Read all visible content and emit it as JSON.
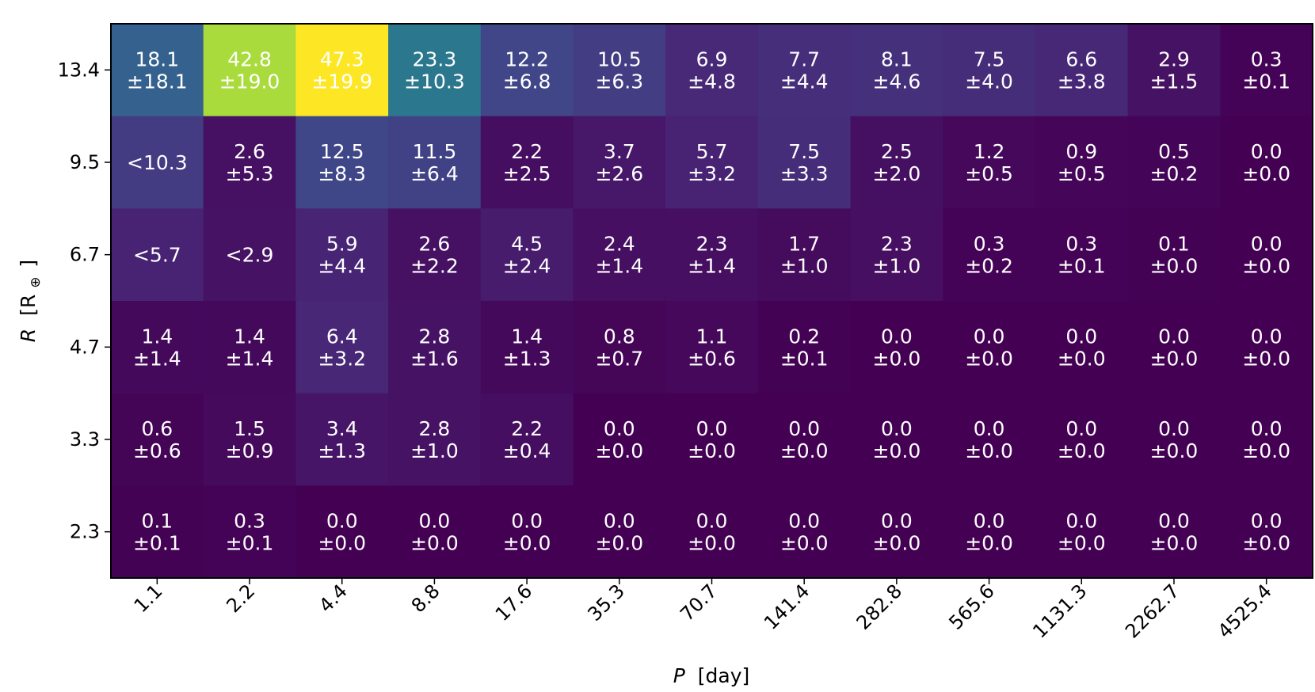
{
  "chart_data": {
    "type": "heatmap",
    "title": "",
    "xlabel_var": "P",
    "xlabel_unit": "[day]",
    "ylabel_var": "R",
    "ylabel_unit": "[R",
    "ylabel_sub": "⊕",
    "ylabel_close": "]",
    "colormap": "viridis",
    "vmin": 0,
    "vmax": 47.3,
    "x_categories": [
      "1.1",
      "2.2",
      "4.4",
      "8.8",
      "17.6",
      "35.3",
      "70.7",
      "141.4",
      "282.8",
      "565.6",
      "1131.3",
      "2262.7",
      "4525.4"
    ],
    "y_categories": [
      "13.4",
      "9.5",
      "6.7",
      "4.7",
      "3.3",
      "2.3"
    ],
    "rows": [
      [
        {
          "value": 18.1,
          "label": "18.1",
          "err": "±18.1"
        },
        {
          "value": 42.8,
          "label": "42.8",
          "err": "±19.0"
        },
        {
          "value": 47.3,
          "label": "47.3",
          "err": "±19.9"
        },
        {
          "value": 23.3,
          "label": "23.3",
          "err": "±10.3"
        },
        {
          "value": 12.2,
          "label": "12.2",
          "err": "±6.8"
        },
        {
          "value": 10.5,
          "label": "10.5",
          "err": "±6.3"
        },
        {
          "value": 6.9,
          "label": "6.9",
          "err": "±4.8"
        },
        {
          "value": 7.7,
          "label": "7.7",
          "err": "±4.4"
        },
        {
          "value": 8.1,
          "label": "8.1",
          "err": "±4.6"
        },
        {
          "value": 7.5,
          "label": "7.5",
          "err": "±4.0"
        },
        {
          "value": 6.6,
          "label": "6.6",
          "err": "±3.8"
        },
        {
          "value": 2.9,
          "label": "2.9",
          "err": "±1.5"
        },
        {
          "value": 0.3,
          "label": "0.3",
          "err": "±0.1"
        }
      ],
      [
        {
          "value": 10.3,
          "label": "<10.3",
          "err": ""
        },
        {
          "value": 2.6,
          "label": "2.6",
          "err": "±5.3"
        },
        {
          "value": 12.5,
          "label": "12.5",
          "err": "±8.3"
        },
        {
          "value": 11.5,
          "label": "11.5",
          "err": "±6.4"
        },
        {
          "value": 2.2,
          "label": "2.2",
          "err": "±2.5"
        },
        {
          "value": 3.7,
          "label": "3.7",
          "err": "±2.6"
        },
        {
          "value": 5.7,
          "label": "5.7",
          "err": "±3.2"
        },
        {
          "value": 7.5,
          "label": "7.5",
          "err": "±3.3"
        },
        {
          "value": 2.5,
          "label": "2.5",
          "err": "±2.0"
        },
        {
          "value": 1.2,
          "label": "1.2",
          "err": "±0.5"
        },
        {
          "value": 0.9,
          "label": "0.9",
          "err": "±0.5"
        },
        {
          "value": 0.5,
          "label": "0.5",
          "err": "±0.2"
        },
        {
          "value": 0.0,
          "label": "0.0",
          "err": "±0.0"
        }
      ],
      [
        {
          "value": 5.7,
          "label": "<5.7",
          "err": ""
        },
        {
          "value": 2.9,
          "label": "<2.9",
          "err": ""
        },
        {
          "value": 5.9,
          "label": "5.9",
          "err": "±4.4"
        },
        {
          "value": 2.6,
          "label": "2.6",
          "err": "±2.2"
        },
        {
          "value": 4.5,
          "label": "4.5",
          "err": "±2.4"
        },
        {
          "value": 2.4,
          "label": "2.4",
          "err": "±1.4"
        },
        {
          "value": 2.3,
          "label": "2.3",
          "err": "±1.4"
        },
        {
          "value": 1.7,
          "label": "1.7",
          "err": "±1.0"
        },
        {
          "value": 2.3,
          "label": "2.3",
          "err": "±1.0"
        },
        {
          "value": 0.3,
          "label": "0.3",
          "err": "±0.2"
        },
        {
          "value": 0.3,
          "label": "0.3",
          "err": "±0.1"
        },
        {
          "value": 0.1,
          "label": "0.1",
          "err": "±0.0"
        },
        {
          "value": 0.0,
          "label": "0.0",
          "err": "±0.0"
        }
      ],
      [
        {
          "value": 1.4,
          "label": "1.4",
          "err": "±1.4"
        },
        {
          "value": 1.4,
          "label": "1.4",
          "err": "±1.4"
        },
        {
          "value": 6.4,
          "label": "6.4",
          "err": "±3.2"
        },
        {
          "value": 2.8,
          "label": "2.8",
          "err": "±1.6"
        },
        {
          "value": 1.4,
          "label": "1.4",
          "err": "±1.3"
        },
        {
          "value": 0.8,
          "label": "0.8",
          "err": "±0.7"
        },
        {
          "value": 1.1,
          "label": "1.1",
          "err": "±0.6"
        },
        {
          "value": 0.2,
          "label": "0.2",
          "err": "±0.1"
        },
        {
          "value": 0.0,
          "label": "0.0",
          "err": "±0.0"
        },
        {
          "value": 0.0,
          "label": "0.0",
          "err": "±0.0"
        },
        {
          "value": 0.0,
          "label": "0.0",
          "err": "±0.0"
        },
        {
          "value": 0.0,
          "label": "0.0",
          "err": "±0.0"
        },
        {
          "value": 0.0,
          "label": "0.0",
          "err": "±0.0"
        }
      ],
      [
        {
          "value": 0.6,
          "label": "0.6",
          "err": "±0.6"
        },
        {
          "value": 1.5,
          "label": "1.5",
          "err": "±0.9"
        },
        {
          "value": 3.4,
          "label": "3.4",
          "err": "±1.3"
        },
        {
          "value": 2.8,
          "label": "2.8",
          "err": "±1.0"
        },
        {
          "value": 2.2,
          "label": "2.2",
          "err": "±0.4"
        },
        {
          "value": 0.0,
          "label": "0.0",
          "err": "±0.0"
        },
        {
          "value": 0.0,
          "label": "0.0",
          "err": "±0.0"
        },
        {
          "value": 0.0,
          "label": "0.0",
          "err": "±0.0"
        },
        {
          "value": 0.0,
          "label": "0.0",
          "err": "±0.0"
        },
        {
          "value": 0.0,
          "label": "0.0",
          "err": "±0.0"
        },
        {
          "value": 0.0,
          "label": "0.0",
          "err": "±0.0"
        },
        {
          "value": 0.0,
          "label": "0.0",
          "err": "±0.0"
        },
        {
          "value": 0.0,
          "label": "0.0",
          "err": "±0.0"
        }
      ],
      [
        {
          "value": 0.1,
          "label": "0.1",
          "err": "±0.1"
        },
        {
          "value": 0.3,
          "label": "0.3",
          "err": "±0.1"
        },
        {
          "value": 0.0,
          "label": "0.0",
          "err": "±0.0"
        },
        {
          "value": 0.0,
          "label": "0.0",
          "err": "±0.0"
        },
        {
          "value": 0.0,
          "label": "0.0",
          "err": "±0.0"
        },
        {
          "value": 0.0,
          "label": "0.0",
          "err": "±0.0"
        },
        {
          "value": 0.0,
          "label": "0.0",
          "err": "±0.0"
        },
        {
          "value": 0.0,
          "label": "0.0",
          "err": "±0.0"
        },
        {
          "value": 0.0,
          "label": "0.0",
          "err": "±0.0"
        },
        {
          "value": 0.0,
          "label": "0.0",
          "err": "±0.0"
        },
        {
          "value": 0.0,
          "label": "0.0",
          "err": "±0.0"
        },
        {
          "value": 0.0,
          "label": "0.0",
          "err": "±0.0"
        },
        {
          "value": 0.0,
          "label": "0.0",
          "err": "±0.0"
        }
      ]
    ]
  }
}
